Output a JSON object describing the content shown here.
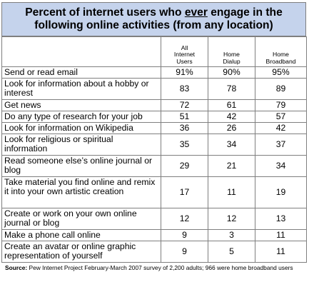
{
  "title": {
    "line1_before": "Percent of internet users who ",
    "line1_emph": "ever",
    "line1_after": " engage in the",
    "line2": "following online activities (from any location)"
  },
  "columns": [
    "All Internet Users",
    "Home Dialup",
    "Home Broadband"
  ],
  "column_lines": [
    [
      "All",
      "Internet",
      "Users"
    ],
    [
      "Home",
      "Dialup"
    ],
    [
      "Home",
      "Broadband"
    ]
  ],
  "rows": [
    {
      "label": "Send or read email",
      "values": [
        "91%",
        "90%",
        "95%"
      ],
      "h": "r1"
    },
    {
      "label": "Look for information about a hobby or interest",
      "values": [
        "83",
        "78",
        "89"
      ],
      "h": "r2"
    },
    {
      "label": "Get news",
      "values": [
        "72",
        "61",
        "79"
      ],
      "h": "r1"
    },
    {
      "label": "Do any type of research for your job",
      "values": [
        "51",
        "42",
        "57"
      ],
      "h": "r1"
    },
    {
      "label": "Look for information on Wikipedia",
      "values": [
        "36",
        "26",
        "42"
      ],
      "h": "r1"
    },
    {
      "label": "Look for religious or spiritual information",
      "values": [
        "35",
        "34",
        "37"
      ],
      "h": "r2"
    },
    {
      "label": "Read someone else’s online journal or blog",
      "values": [
        "29",
        "21",
        "34"
      ],
      "h": "r2"
    },
    {
      "label": "Take material you find online and remix it into your own artistic creation",
      "values": [
        "17",
        "11",
        "19"
      ],
      "h": "r3"
    },
    {
      "label": "Create or work on your own online journal or blog",
      "values": [
        "12",
        "12",
        "13"
      ],
      "h": "r2"
    },
    {
      "label": "Make a phone call online",
      "values": [
        "9",
        "3",
        "11"
      ],
      "h": "r1"
    },
    {
      "label": "Create an avatar or online graphic representation of yourself",
      "values": [
        "9",
        "5",
        "11"
      ],
      "h": "r2"
    }
  ],
  "source": {
    "prefix": "Source:",
    "text": " Pew Internet Project February-March 2007 survey of 2,200 adults; 966 were home broadband users"
  },
  "colors": {
    "header_bg": "#c5d3ec",
    "border": "#7f7f7f"
  },
  "chart_data": {
    "type": "table",
    "title": "Percent of internet users who ever engage in the following online activities (from any location)",
    "series": [
      {
        "name": "All Internet Users",
        "values": [
          91,
          83,
          72,
          51,
          36,
          35,
          29,
          17,
          12,
          9,
          9
        ]
      },
      {
        "name": "Home Dialup",
        "values": [
          90,
          78,
          61,
          42,
          26,
          34,
          21,
          11,
          12,
          3,
          5
        ]
      },
      {
        "name": "Home Broadband",
        "values": [
          95,
          89,
          79,
          57,
          42,
          37,
          34,
          19,
          13,
          11,
          11
        ]
      }
    ],
    "categories": [
      "Send or read email",
      "Look for information about a hobby or interest",
      "Get news",
      "Do any type of research for your job",
      "Look for information on Wikipedia",
      "Look for religious or spiritual information",
      "Read someone else’s online journal or blog",
      "Take material you find online and remix it into your own artistic creation",
      "Create or work on your own online journal or blog",
      "Make a phone call online",
      "Create an avatar or online graphic representation of yourself"
    ]
  }
}
